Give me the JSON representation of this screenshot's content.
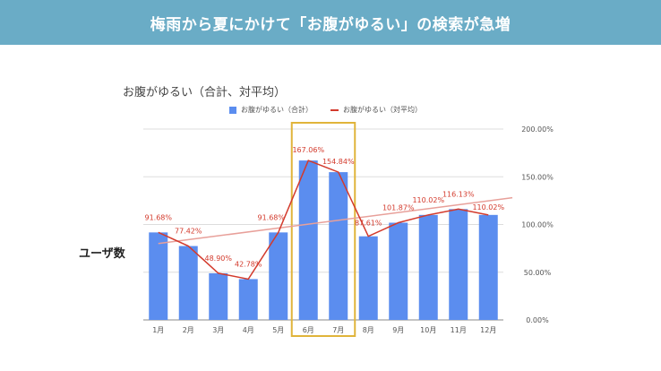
{
  "banner": {
    "title": "梅雨から夏にかけて「お腹がゆるい」の検索が急増"
  },
  "side_label": "ユーザ数",
  "chart_data": {
    "type": "bar",
    "title": "お腹がゆるい（合計、対平均）",
    "categories": [
      "1月",
      "2月",
      "3月",
      "4月",
      "5月",
      "6月",
      "7月",
      "8月",
      "9月",
      "10月",
      "11月",
      "12月"
    ],
    "series": [
      {
        "name": "お腹がゆるい（合計）",
        "type": "bar",
        "color": "#5b8def",
        "values": [
          91.68,
          77.42,
          48.9,
          42.78,
          91.68,
          167.06,
          154.84,
          87.61,
          101.87,
          110.02,
          116.13,
          110.02
        ]
      },
      {
        "name": "お腹がゆるい（対平均）",
        "type": "line",
        "color": "#d33a2c",
        "values": [
          91.68,
          77.42,
          48.9,
          42.78,
          91.68,
          167.06,
          154.84,
          87.61,
          101.87,
          110.02,
          116.13,
          110.02
        ],
        "labels": [
          "91.68%",
          "77.42%",
          "48.90%",
          "42.78%",
          "91.68%",
          "167.06%",
          "154.84%",
          "87.61%",
          "101.87%",
          "110.02%",
          "116.13%",
          "110.02%"
        ]
      }
    ],
    "y_ticks": [
      "0.00%",
      "50.00%",
      "100.00%",
      "150.00%",
      "200.00%"
    ],
    "ylim": [
      0,
      200
    ],
    "trendline": {
      "color": "#e8a09a",
      "start": 80,
      "end": 128
    },
    "highlight": {
      "categories": [
        "6月",
        "7月"
      ],
      "color": "#e0b43a"
    },
    "grid": true,
    "legend_position": "top"
  }
}
